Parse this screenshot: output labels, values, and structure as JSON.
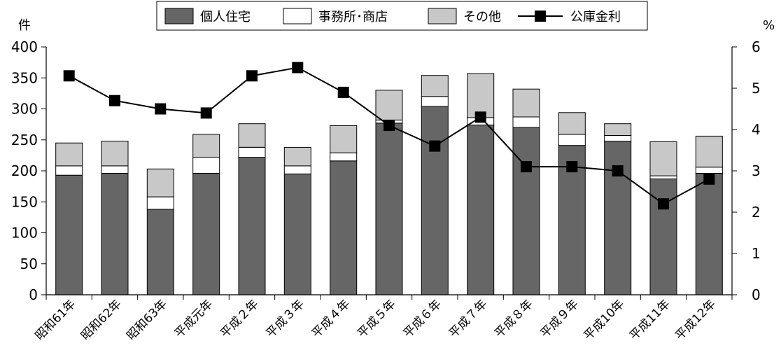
{
  "chart_data": {
    "type": "bar",
    "stacked": true,
    "categories": [
      "昭和61年",
      "昭和62年",
      "昭和63年",
      "平成元年",
      "平成２年",
      "平成３年",
      "平成４年",
      "平成５年",
      "平成６年",
      "平成７年",
      "平成８年",
      "平成９年",
      "平成10年",
      "平成11年",
      "平成12年"
    ],
    "series": [
      {
        "name": "個人住宅",
        "color": "#666666",
        "values": [
          193,
          196,
          138,
          196,
          222,
          195,
          216,
          277,
          304,
          274,
          270,
          241,
          248,
          187,
          196
        ]
      },
      {
        "name": "事務所･商店",
        "color": "#ffffff",
        "values": [
          15,
          12,
          20,
          26,
          16,
          13,
          13,
          5,
          16,
          12,
          17,
          18,
          9,
          5,
          10
        ]
      },
      {
        "name": "その他",
        "color": "#c8c8c8",
        "values": [
          37,
          40,
          45,
          37,
          38,
          30,
          44,
          48,
          34,
          71,
          45,
          35,
          19,
          55,
          50
        ]
      }
    ],
    "line_series": {
      "name": "公庫金利",
      "axis": "right",
      "color": "#000000",
      "values": [
        5.3,
        4.7,
        4.5,
        4.4,
        5.3,
        5.5,
        4.9,
        4.1,
        3.6,
        4.3,
        3.1,
        3.1,
        3.0,
        2.2,
        2.8
      ]
    },
    "left_axis": {
      "unit": "件",
      "ylim": [
        0,
        400
      ],
      "ticks": [
        "0",
        "50",
        "100",
        "150",
        "200",
        "250",
        "300",
        "350",
        "400"
      ]
    },
    "right_axis": {
      "unit": "%",
      "ylim": [
        0,
        6
      ],
      "ticks": [
        "0",
        "1",
        "2",
        "3",
        "4",
        "5",
        "6"
      ]
    },
    "legend_placement": "top",
    "grid": false
  }
}
